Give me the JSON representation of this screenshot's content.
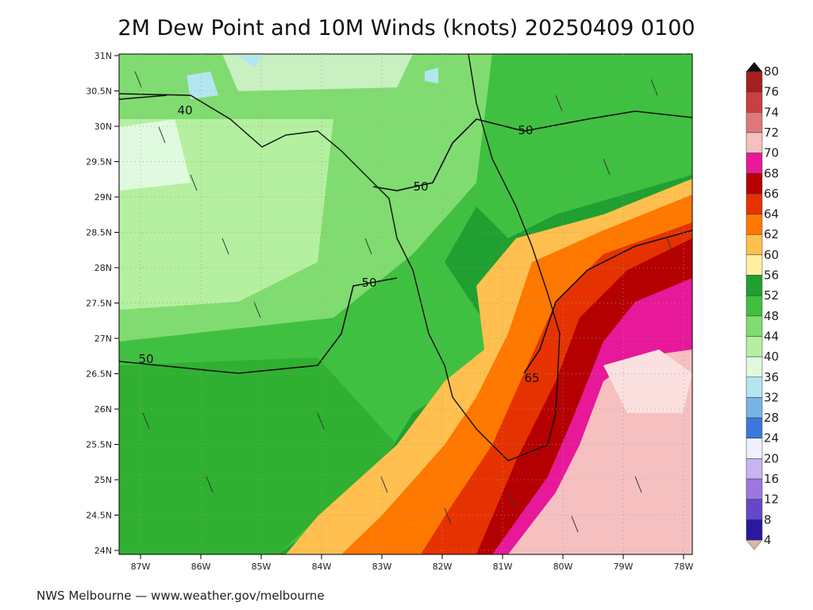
{
  "title": "2M Dew Point and 10M Winds (knots) 20250409 0100",
  "lat_labels": [
    "31N",
    "30.5N",
    "30N",
    "29.5N",
    "29N",
    "28.5N",
    "28N",
    "27.5N",
    "27N",
    "26.5N",
    "26N",
    "25.5N",
    "25N",
    "24.5N",
    "24N"
  ],
  "lon_labels": [
    "87W",
    "86W",
    "85W",
    "84W",
    "83W",
    "82W",
    "81W",
    "80W",
    "79W",
    "78W"
  ],
  "colorbar": {
    "labels": [
      "80",
      "76",
      "74",
      "72",
      "70",
      "68",
      "66",
      "64",
      "62",
      "60",
      "56",
      "52",
      "48",
      "44",
      "40",
      "36",
      "32",
      "28",
      "24",
      "20",
      "16",
      "12",
      "8",
      "4"
    ],
    "colors": [
      "#a42020",
      "#c84040",
      "#e07878",
      "#f7c0c0",
      "#e8189a",
      "#b40000",
      "#e63200",
      "#ff7800",
      "#ffc050",
      "#fff0a0",
      "#20a030",
      "#40c040",
      "#80dc70",
      "#b4f0a0",
      "#e0fae0",
      "#b4e6f0",
      "#78b4e6",
      "#3c78dc",
      "#f0f0ff",
      "#c8b4f0",
      "#9a78e0",
      "#6448c8",
      "#2a18a0"
    ]
  },
  "contour_labels": [
    "40",
    "50",
    "50",
    "50",
    "50",
    "65"
  ],
  "footer": "NWS Melbourne — www.weather.gov/melbourne"
}
